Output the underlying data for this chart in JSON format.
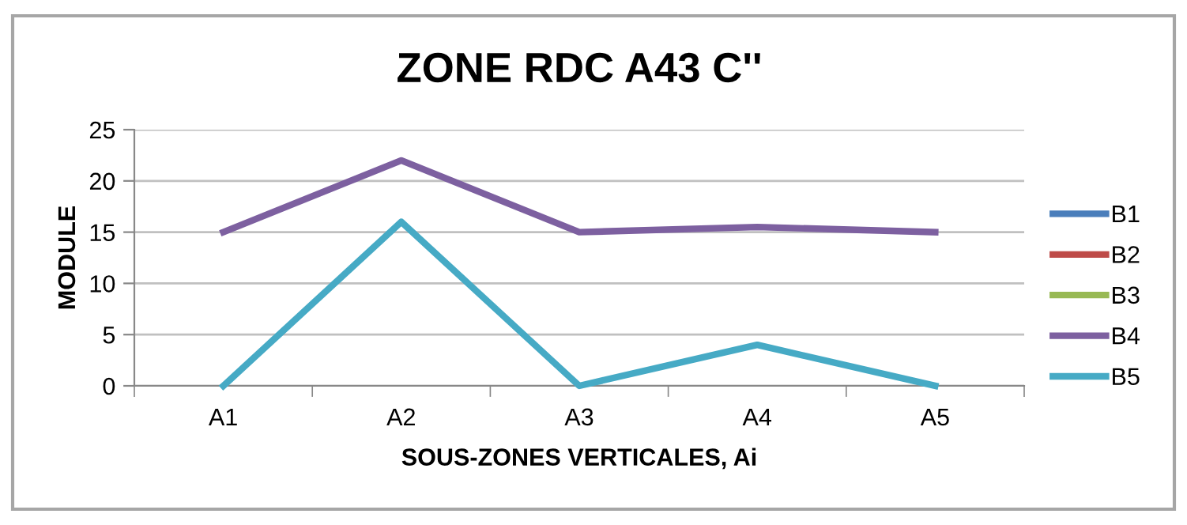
{
  "chart_data": {
    "type": "line",
    "title": "ZONE RDC A43 C''",
    "xlabel": "SOUS-ZONES VERTICALES, Ai",
    "ylabel": "MODULE",
    "categories": [
      "A1",
      "A2",
      "A3",
      "A4",
      "A5"
    ],
    "series": [
      {
        "name": "B1",
        "color": "#4a7ebb",
        "values": [
          null,
          null,
          null,
          null,
          null
        ]
      },
      {
        "name": "B2",
        "color": "#be4b48",
        "values": [
          null,
          null,
          null,
          null,
          null
        ]
      },
      {
        "name": "B3",
        "color": "#98b954",
        "values": [
          null,
          null,
          null,
          null,
          null
        ]
      },
      {
        "name": "B4",
        "color": "#7d60a0",
        "values": [
          15,
          22,
          15,
          15.5,
          15
        ]
      },
      {
        "name": "B5",
        "color": "#46aac5",
        "values": [
          0,
          16,
          0,
          4,
          0
        ]
      }
    ],
    "ylim": [
      0,
      25
    ],
    "yticks": [
      0,
      5,
      10,
      15,
      20,
      25
    ],
    "grid": "y",
    "legend": "right",
    "marker": "none",
    "line_style": "solid"
  }
}
